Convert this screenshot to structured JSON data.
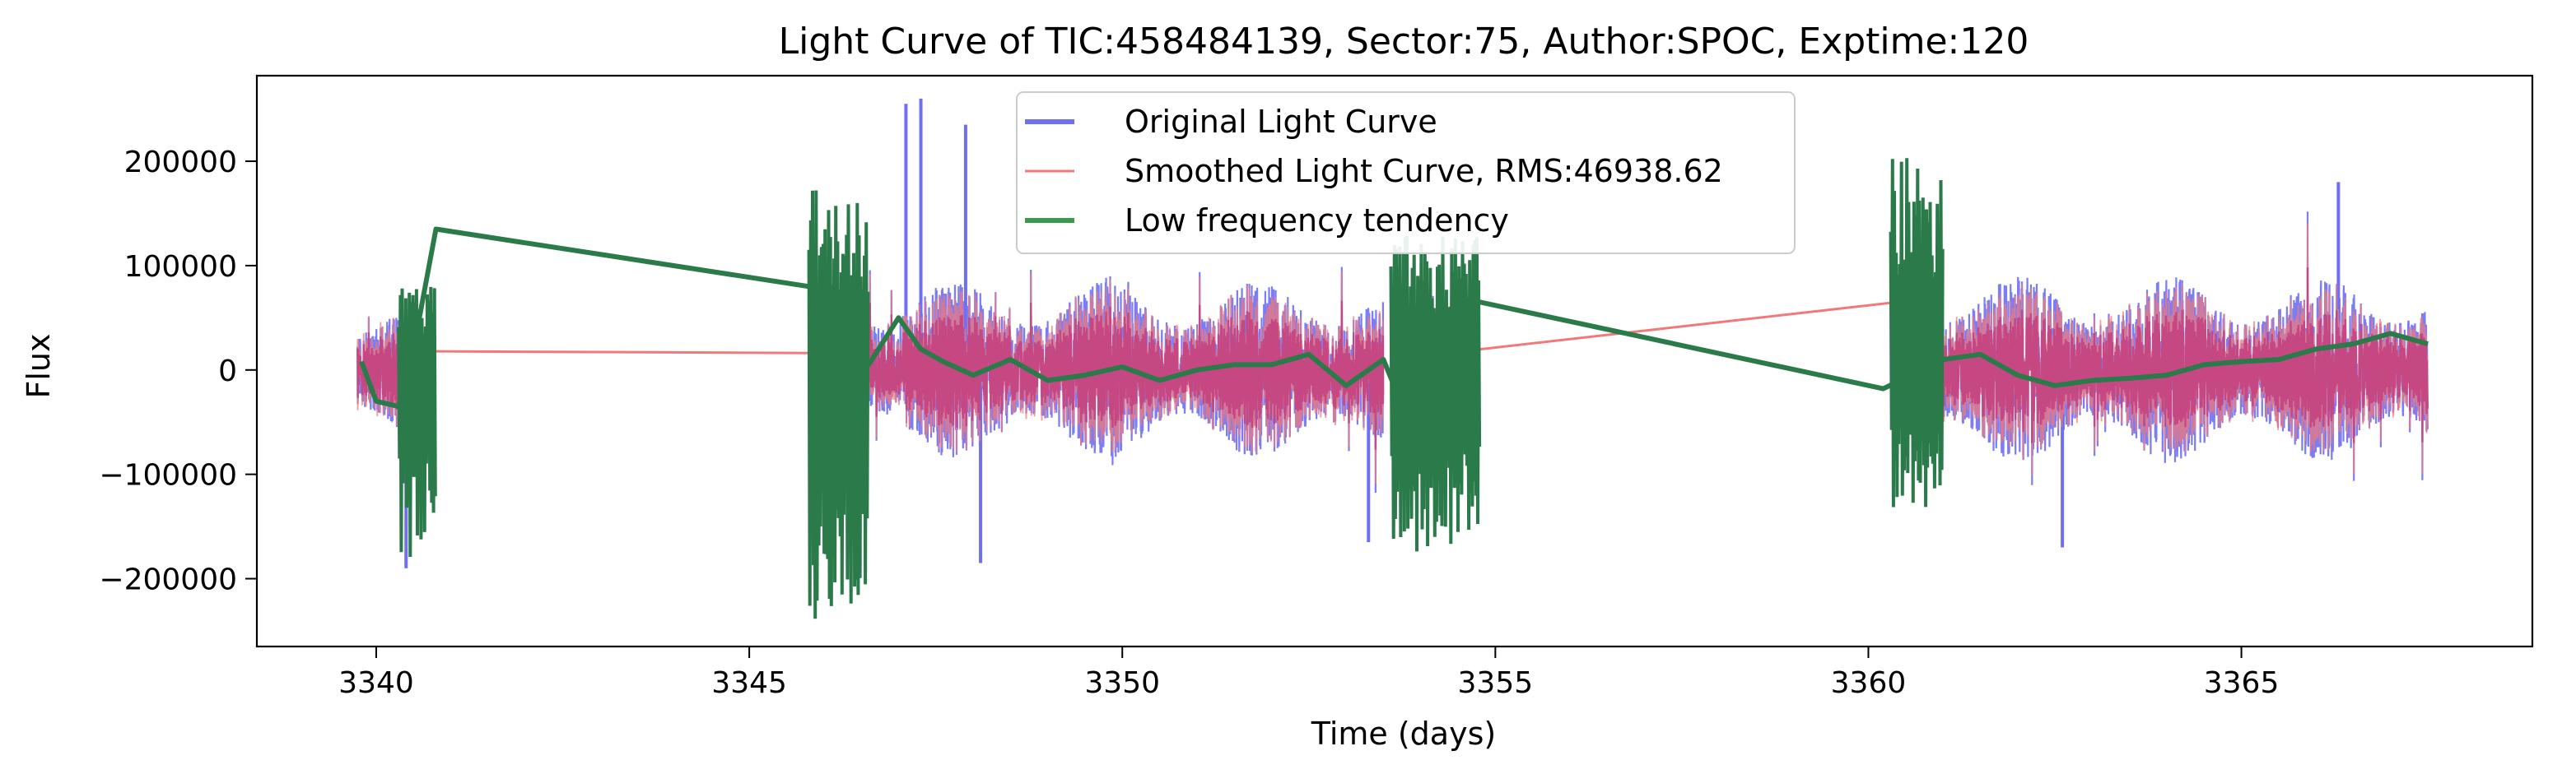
{
  "chart_data": {
    "type": "line",
    "title": "Light Curve of TIC:458484139, Sector:75, Author:SPOC, Exptime:120",
    "xlabel": "Time (days)",
    "ylabel": "Flux",
    "xlim": [
      3338.4,
      3368.9
    ],
    "ylim": [
      -265000,
      282000
    ],
    "xticks": [
      3340,
      3345,
      3350,
      3355,
      3360,
      3365
    ],
    "yticks": [
      -200000,
      -100000,
      0,
      100000,
      200000
    ],
    "xtick_labels": [
      "3340",
      "3345",
      "3350",
      "3355",
      "3360",
      "3365"
    ],
    "ytick_labels": [
      "−200000",
      "−100000",
      "0",
      "100000",
      "200000"
    ],
    "grid": false,
    "legend_position": "top-center",
    "colors": {
      "original": "#6f6ff2",
      "smoothed": "#f07a7a",
      "overlap": "#c3407e",
      "low": "#2a7a4a"
    },
    "segments": [
      {
        "start": 3339.75,
        "end": 3340.3,
        "orig_amp": 60000,
        "smooth_amp": 55000
      },
      {
        "start": 3346.6,
        "end": 3353.5,
        "orig_amp": 85000,
        "smooth_amp": 75000
      },
      {
        "start": 3353.6,
        "end": 3354.2,
        "orig_amp": 70000,
        "smooth_amp": 60000
      },
      {
        "start": 3361.0,
        "end": 3367.5,
        "orig_amp": 90000,
        "smooth_amp": 80000
      }
    ],
    "series": [
      {
        "name": "Original Light Curve",
        "style": "noise",
        "spikes": [
          [
            3347.1,
            255000
          ],
          [
            3347.3,
            260000
          ],
          [
            3347.9,
            235000
          ],
          [
            3340.4,
            -190000
          ],
          [
            3348.1,
            -185000
          ],
          [
            3362.6,
            -170000
          ],
          [
            3366.3,
            180000
          ],
          [
            3353.3,
            -165000
          ]
        ]
      },
      {
        "name": "Smoothed Light Curve, RMS:46938.62",
        "style": "noise",
        "gap_lines": [
          [
            [
              3340.3,
              18000
            ],
            [
              3346.6,
              16000
            ]
          ],
          [
            [
              3354.2,
              15000
            ],
            [
              3361.0,
              70000
            ]
          ]
        ]
      },
      {
        "name": "Low frequency tendency",
        "x": [
          3339.8,
          3340.0,
          3340.3,
          3340.5,
          3340.8,
          3345.8,
          3346.6,
          3347.0,
          3347.3,
          3347.6,
          3348.0,
          3348.5,
          3349.0,
          3349.5,
          3350.0,
          3350.5,
          3351.0,
          3351.5,
          3352.0,
          3352.5,
          3353.0,
          3353.5,
          3353.7,
          3354.2,
          3354.6,
          3360.2,
          3361.0,
          3361.5,
          3362.0,
          3362.5,
          3363.0,
          3363.5,
          3364.0,
          3364.5,
          3365.0,
          3365.5,
          3366.0,
          3366.5,
          3367.0,
          3367.5
        ],
        "y": [
          8000,
          -30000,
          -35000,
          20000,
          135000,
          80000,
          5000,
          50000,
          20000,
          8000,
          -5000,
          10000,
          -10000,
          -5000,
          3000,
          -10000,
          0,
          5000,
          5000,
          15000,
          -15000,
          10000,
          -25000,
          -22000,
          68000,
          -18000,
          10000,
          15000,
          -5000,
          -15000,
          -10000,
          -8000,
          -5000,
          5000,
          8000,
          10000,
          20000,
          25000,
          35000,
          25000
        ],
        "bursts": [
          {
            "x0": 3340.3,
            "x1": 3340.8,
            "ymin": -190000,
            "ymax": 80000
          },
          {
            "x0": 3345.8,
            "x1": 3346.6,
            "ymin": -240000,
            "ymax": 175000
          },
          {
            "x0": 3353.6,
            "x1": 3354.8,
            "ymin": -175000,
            "ymax": 130000
          },
          {
            "x0": 3360.3,
            "x1": 3361.0,
            "ymin": -140000,
            "ymax": 205000
          }
        ]
      }
    ]
  }
}
